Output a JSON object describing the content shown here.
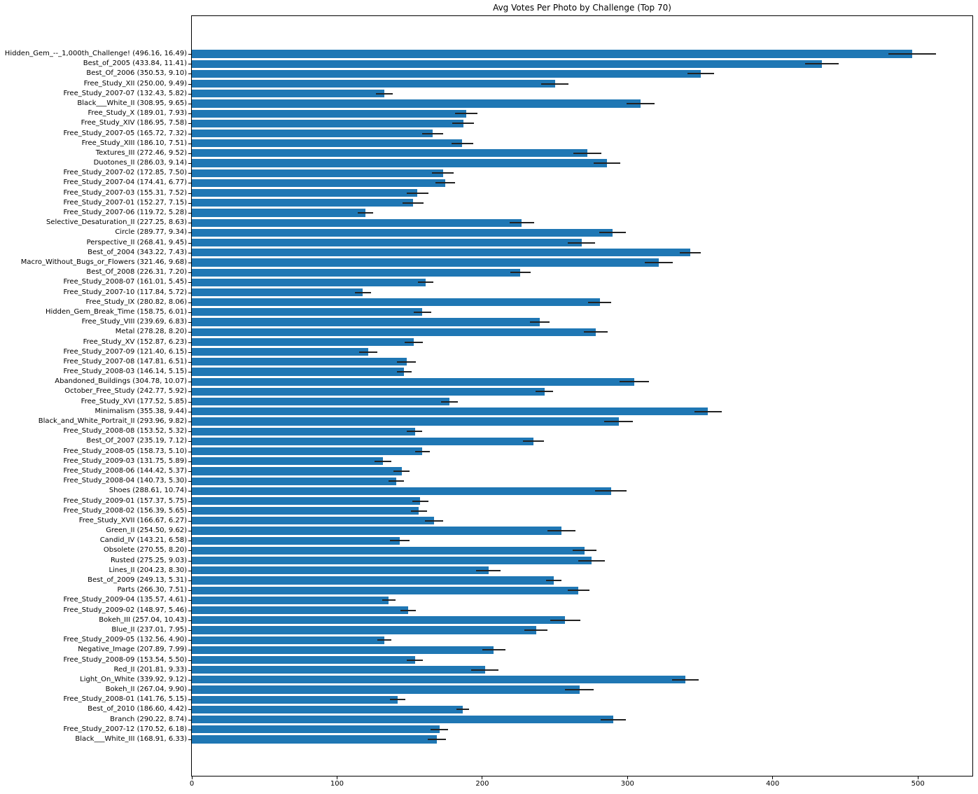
{
  "chart_data": {
    "type": "bar",
    "orientation": "horizontal",
    "title": "Avg Votes Per Photo by Challenge (Top 70)",
    "xlabel": "",
    "ylabel": "",
    "xlim": [
      0,
      538
    ],
    "xticks": [
      0,
      100,
      200,
      300,
      400,
      500
    ],
    "grid": false,
    "legend": "none",
    "bar_color": "#1f77b4",
    "error_bar_color": "#222222",
    "label_format": "{name} ({value}, {err})",
    "items": [
      {
        "name": "Hidden_Gem_--_1,000th_Challenge!",
        "value": 496.16,
        "err": 16.49
      },
      {
        "name": "Best_of_2005",
        "value": 433.84,
        "err": 11.41
      },
      {
        "name": "Best_Of_2006",
        "value": 350.53,
        "err": 9.1
      },
      {
        "name": "Free_Study_XII",
        "value": 250.0,
        "err": 9.49
      },
      {
        "name": "Free_Study_2007-07",
        "value": 132.43,
        "err": 5.82
      },
      {
        "name": "Black___White_II",
        "value": 308.95,
        "err": 9.65
      },
      {
        "name": "Free_Study_X",
        "value": 189.01,
        "err": 7.93
      },
      {
        "name": "Free_Study_XIV",
        "value": 186.95,
        "err": 7.58
      },
      {
        "name": "Free_Study_2007-05",
        "value": 165.72,
        "err": 7.32
      },
      {
        "name": "Free_Study_XIII",
        "value": 186.1,
        "err": 7.51
      },
      {
        "name": "Textures_III",
        "value": 272.46,
        "err": 9.52
      },
      {
        "name": "Duotones_II",
        "value": 286.03,
        "err": 9.14
      },
      {
        "name": "Free_Study_2007-02",
        "value": 172.85,
        "err": 7.5
      },
      {
        "name": "Free_Study_2007-04",
        "value": 174.41,
        "err": 6.77
      },
      {
        "name": "Free_Study_2007-03",
        "value": 155.31,
        "err": 7.52
      },
      {
        "name": "Free_Study_2007-01",
        "value": 152.27,
        "err": 7.15
      },
      {
        "name": "Free_Study_2007-06",
        "value": 119.72,
        "err": 5.28
      },
      {
        "name": "Selective_Desaturation_II",
        "value": 227.25,
        "err": 8.63
      },
      {
        "name": "Circle",
        "value": 289.77,
        "err": 9.34
      },
      {
        "name": "Perspective_II",
        "value": 268.41,
        "err": 9.45
      },
      {
        "name": "Best_of_2004",
        "value": 343.22,
        "err": 7.43
      },
      {
        "name": "Macro_Without_Bugs_or_Flowers",
        "value": 321.46,
        "err": 9.68
      },
      {
        "name": "Best_Of_2008",
        "value": 226.31,
        "err": 7.2
      },
      {
        "name": "Free_Study_2008-07",
        "value": 161.01,
        "err": 5.45
      },
      {
        "name": "Free_Study_2007-10",
        "value": 117.84,
        "err": 5.72
      },
      {
        "name": "Free_Study_IX",
        "value": 280.82,
        "err": 8.06
      },
      {
        "name": "Hidden_Gem_Break_Time",
        "value": 158.75,
        "err": 6.01
      },
      {
        "name": "Free_Study_VIII",
        "value": 239.69,
        "err": 6.83
      },
      {
        "name": "Metal",
        "value": 278.28,
        "err": 8.2
      },
      {
        "name": "Free_Study_XV",
        "value": 152.87,
        "err": 6.23
      },
      {
        "name": "Free_Study_2007-09",
        "value": 121.4,
        "err": 6.15
      },
      {
        "name": "Free_Study_2007-08",
        "value": 147.81,
        "err": 6.51
      },
      {
        "name": "Free_Study_2008-03",
        "value": 146.14,
        "err": 5.15
      },
      {
        "name": "Abandoned_Buildings",
        "value": 304.78,
        "err": 10.07
      },
      {
        "name": "October_Free_Study",
        "value": 242.77,
        "err": 5.92
      },
      {
        "name": "Free_Study_XVI",
        "value": 177.52,
        "err": 5.85
      },
      {
        "name": "Minimalism",
        "value": 355.38,
        "err": 9.44
      },
      {
        "name": "Black_and_White_Portrait_II",
        "value": 293.96,
        "err": 9.82
      },
      {
        "name": "Free_Study_2008-08",
        "value": 153.52,
        "err": 5.32
      },
      {
        "name": "Best_Of_2007",
        "value": 235.19,
        "err": 7.12
      },
      {
        "name": "Free_Study_2008-05",
        "value": 158.73,
        "err": 5.1
      },
      {
        "name": "Free_Study_2009-03",
        "value": 131.75,
        "err": 5.89
      },
      {
        "name": "Free_Study_2008-06",
        "value": 144.42,
        "err": 5.37
      },
      {
        "name": "Free_Study_2008-04",
        "value": 140.73,
        "err": 5.3
      },
      {
        "name": "Shoes",
        "value": 288.61,
        "err": 10.74
      },
      {
        "name": "Free_Study_2009-01",
        "value": 157.37,
        "err": 5.75
      },
      {
        "name": "Free_Study_2008-02",
        "value": 156.39,
        "err": 5.65
      },
      {
        "name": "Free_Study_XVII",
        "value": 166.67,
        "err": 6.27
      },
      {
        "name": "Green_II",
        "value": 254.5,
        "err": 9.62
      },
      {
        "name": "Candid_IV",
        "value": 143.21,
        "err": 6.58
      },
      {
        "name": "Obsolete",
        "value": 270.55,
        "err": 8.2
      },
      {
        "name": "Rusted",
        "value": 275.25,
        "err": 9.03
      },
      {
        "name": "Lines_II",
        "value": 204.23,
        "err": 8.3
      },
      {
        "name": "Best_of_2009",
        "value": 249.13,
        "err": 5.31
      },
      {
        "name": "Parts",
        "value": 266.3,
        "err": 7.51
      },
      {
        "name": "Free_Study_2009-04",
        "value": 135.57,
        "err": 4.61
      },
      {
        "name": "Free_Study_2009-02",
        "value": 148.97,
        "err": 5.46
      },
      {
        "name": "Bokeh_III",
        "value": 257.04,
        "err": 10.43
      },
      {
        "name": "Blue_II",
        "value": 237.01,
        "err": 7.95
      },
      {
        "name": "Free_Study_2009-05",
        "value": 132.56,
        "err": 4.9
      },
      {
        "name": "Negative_Image",
        "value": 207.89,
        "err": 7.99
      },
      {
        "name": "Free_Study_2008-09",
        "value": 153.54,
        "err": 5.5
      },
      {
        "name": "Red_II",
        "value": 201.81,
        "err": 9.33
      },
      {
        "name": "Light_On_White",
        "value": 339.92,
        "err": 9.12
      },
      {
        "name": "Bokeh_II",
        "value": 267.04,
        "err": 9.9
      },
      {
        "name": "Free_Study_2008-01",
        "value": 141.76,
        "err": 5.15
      },
      {
        "name": "Best_of_2010",
        "value": 186.6,
        "err": 4.42
      },
      {
        "name": "Branch",
        "value": 290.22,
        "err": 8.74
      },
      {
        "name": "Free_Study_2007-12",
        "value": 170.52,
        "err": 6.18
      },
      {
        "name": "Black___White_III",
        "value": 168.91,
        "err": 6.33
      }
    ]
  }
}
